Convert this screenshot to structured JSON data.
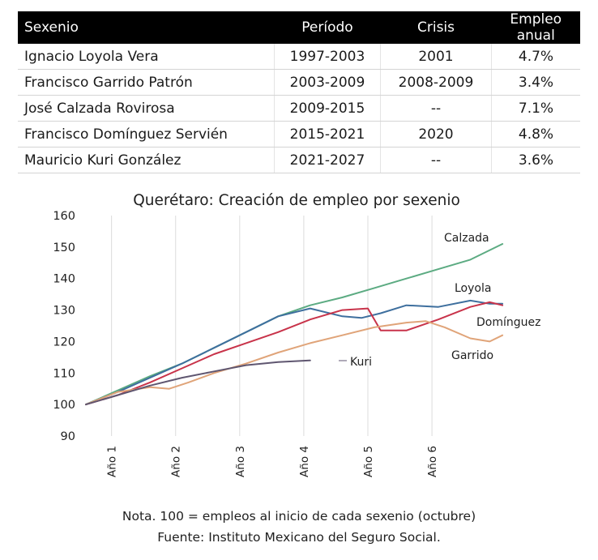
{
  "table": {
    "headers": [
      "Sexenio",
      "Período",
      "Crisis",
      "Empleo anual"
    ],
    "rows": [
      [
        "Ignacio Loyola Vera",
        "1997-2003",
        "2001",
        "4.7%"
      ],
      [
        "Francisco Garrido Patrón",
        "2003-2009",
        "2008-2009",
        "3.4%"
      ],
      [
        "José Calzada Rovirosa",
        "2009-2015",
        "--",
        "7.1%"
      ],
      [
        "Francisco Domínguez Servién",
        "2015-2021",
        "2020",
        "4.8%"
      ],
      [
        "Mauricio Kuri González",
        "2021-2027",
        "--",
        "3.6%"
      ]
    ]
  },
  "chart_data": {
    "type": "line",
    "title": "Querétaro: Creación de empleo por sexenio",
    "xlabel": "",
    "ylabel": "",
    "ylim": [
      90,
      160
    ],
    "yticks": [
      90,
      100,
      110,
      120,
      130,
      140,
      150,
      160
    ],
    "xlim": [
      0,
      6.6
    ],
    "xticks": [
      {
        "label": "Año 1",
        "x": 0.4
      },
      {
        "label": "Año 2",
        "x": 1.4
      },
      {
        "label": "Año 3",
        "x": 2.4
      },
      {
        "label": "Año 4",
        "x": 3.4
      },
      {
        "label": "Año 5",
        "x": 4.4
      },
      {
        "label": "Año 6",
        "x": 5.4
      }
    ],
    "grid": "vertical",
    "legend": "labels at line ends",
    "series": [
      {
        "name": "Calzada",
        "color": "#5cab82",
        "x": [
          0,
          0.5,
          1,
          1.5,
          2,
          2.5,
          3,
          3.5,
          4,
          4.5,
          5,
          5.5,
          6,
          6.5
        ],
        "values": [
          100,
          104.5,
          109,
          113,
          118,
          123,
          128,
          131.5,
          134,
          137,
          140,
          143,
          146,
          151
        ]
      },
      {
        "name": "Loyola",
        "color": "#3e6f9e",
        "x": [
          0,
          0.5,
          1,
          1.5,
          2,
          2.5,
          3,
          3.5,
          4,
          4.3,
          4.6,
          5,
          5.5,
          6,
          6.3,
          6.5
        ],
        "values": [
          100,
          104,
          108.5,
          113,
          118,
          123,
          128,
          130.5,
          128,
          127.5,
          129,
          131.5,
          131,
          133,
          132,
          132
        ]
      },
      {
        "name": "Domínguez",
        "color": "#c8334a",
        "x": [
          0,
          0.5,
          1,
          1.5,
          2,
          2.5,
          3,
          3.5,
          4,
          4.4,
          4.6,
          5,
          5.5,
          6,
          6.3,
          6.5
        ],
        "values": [
          100,
          103,
          107,
          111.5,
          116,
          119.5,
          123,
          127,
          130,
          130.5,
          123.5,
          123.5,
          127,
          131,
          132.5,
          131.5
        ]
      },
      {
        "name": "Garrido",
        "color": "#e0a479",
        "x": [
          0,
          0.5,
          1,
          1.3,
          1.6,
          2,
          2.5,
          3,
          3.5,
          4,
          4.5,
          5,
          5.3,
          5.6,
          6,
          6.3,
          6.5
        ],
        "values": [
          100,
          104,
          105.5,
          105,
          107,
          110,
          113,
          116.5,
          119.5,
          122,
          124.5,
          126,
          126.5,
          124.5,
          121,
          120,
          122
        ]
      },
      {
        "name": "Kuri",
        "color": "#5f5670",
        "x": [
          0,
          0.5,
          1,
          1.5,
          2,
          2.5,
          3,
          3.5
        ],
        "values": [
          100,
          103,
          106,
          108.5,
          110.5,
          112.5,
          113.5,
          114
        ]
      }
    ]
  },
  "footer": {
    "note": "Nota. 100 = empleos al inicio de cada sexenio (octubre)",
    "source": "Fuente: Instituto Mexicano del Seguro Social."
  }
}
